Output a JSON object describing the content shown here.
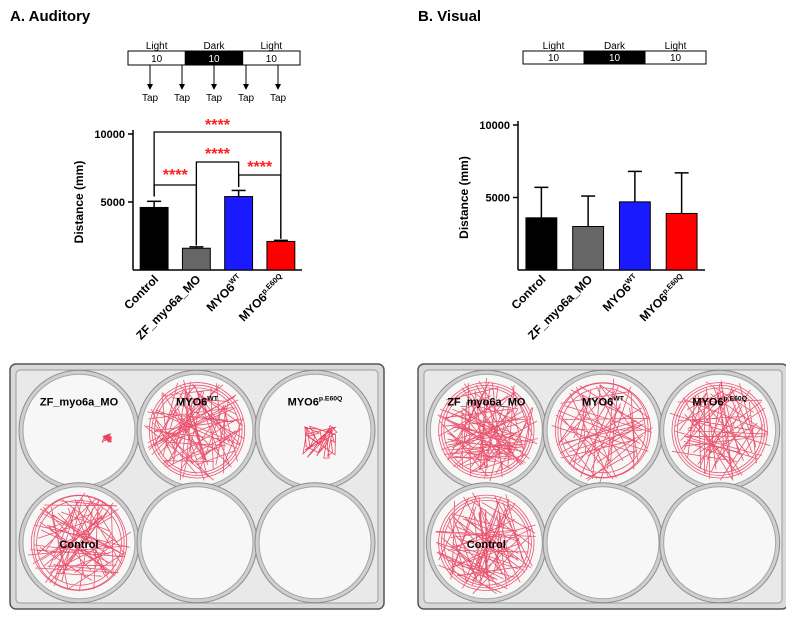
{
  "panels": {
    "a_title": "A. Auditory",
    "b_title": "B. Visual"
  },
  "protocol": {
    "labels": [
      "Light",
      "Dark",
      "Light"
    ],
    "minutes": [
      "10",
      "10",
      "10"
    ],
    "tap_label": "Tap",
    "tap_count": 5
  },
  "significance": "****",
  "colors": {
    "Control": "#000000",
    "ZF_myo6a_MO": "#666666",
    "MYO6_WT": "#1a1aff",
    "MYO6_pE60Q": "#ff0000",
    "star": "#ff2020",
    "track": "#e8415f"
  },
  "plates": {
    "auditory": {
      "well_labels": [
        {
          "base": "ZF_myo6a_MO",
          "sup": ""
        },
        {
          "base": "MYO6",
          "sup": "WT"
        },
        {
          "base": "MYO6",
          "sup": "p.E60Q"
        },
        {
          "base": "Control",
          "sup": ""
        }
      ]
    },
    "visual": {
      "well_labels": [
        {
          "base": "ZF_myo6a_MO",
          "sup": ""
        },
        {
          "base": "MYO6",
          "sup": "WT"
        },
        {
          "base": "MYO6",
          "sup": "p.E60Q"
        },
        {
          "base": "Control",
          "sup": ""
        }
      ]
    }
  },
  "chart_data": [
    {
      "type": "bar",
      "panel": "A. Auditory",
      "categories": [
        {
          "base": "Control",
          "sup": ""
        },
        {
          "base": "ZF_myo6a_MO",
          "sup": ""
        },
        {
          "base": "MYO6",
          "sup": "WT"
        },
        {
          "base": "MYO6",
          "sup": "p.E60Q"
        }
      ],
      "values": [
        4600,
        1600,
        5400,
        2100
      ],
      "errors": [
        450,
        100,
        450,
        80
      ],
      "ylabel": "Distance (mm)",
      "ylim": [
        0,
        10000
      ],
      "yticks": [
        5000,
        10000
      ],
      "annotations": [
        {
          "from": 0,
          "to": 1,
          "text": "****"
        },
        {
          "from": 1,
          "to": 2,
          "text": "****"
        },
        {
          "from": 2,
          "to": 3,
          "text": "****"
        },
        {
          "from": 0,
          "to": 3,
          "text": "****"
        }
      ]
    },
    {
      "type": "bar",
      "panel": "B. Visual",
      "categories": [
        {
          "base": "Control",
          "sup": ""
        },
        {
          "base": "ZF_myo6a_MO",
          "sup": ""
        },
        {
          "base": "MYO6",
          "sup": "WT"
        },
        {
          "base": "MYO6",
          "sup": "p.E60Q"
        }
      ],
      "values": [
        3600,
        3000,
        4700,
        3900
      ],
      "errors": [
        2100,
        2100,
        2100,
        2800
      ],
      "ylabel": "Distance (mm)",
      "ylim": [
        0,
        10000
      ],
      "yticks": [
        5000,
        10000
      ]
    }
  ]
}
